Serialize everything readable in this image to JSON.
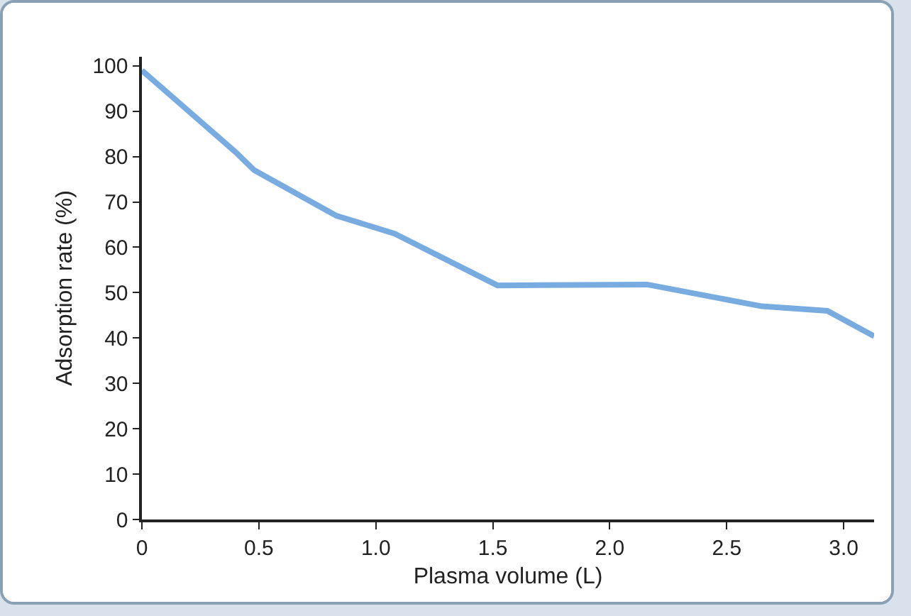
{
  "chart_data": {
    "type": "line",
    "xlabel": "Plasma volume (L)",
    "ylabel": "Adsorption rate (%)",
    "x": [
      0,
      0.4,
      0.48,
      0.83,
      1.08,
      1.52,
      2.16,
      2.65,
      2.93,
      3.13
    ],
    "values": [
      99,
      81,
      77,
      67,
      63,
      51.6,
      51.8,
      47,
      46,
      40.4
    ],
    "color": "#78abdf",
    "xlim": [
      0,
      3.13
    ],
    "ylim": [
      0,
      102
    ],
    "xticks": [
      0,
      {
        "value": 0.5,
        "label": "0.5"
      },
      {
        "value": 1,
        "label": "1.0"
      },
      {
        "value": 1.5,
        "label": "1.5"
      },
      {
        "value": 2,
        "label": "2.0"
      },
      {
        "value": 2.5,
        "label": "2.5"
      },
      {
        "value": 3,
        "label": "3.0"
      }
    ],
    "yticks": [
      0,
      10,
      20,
      30,
      40,
      50,
      60,
      70,
      80,
      90,
      100
    ],
    "grid": false,
    "marker": "none",
    "line_style": "solid"
  }
}
